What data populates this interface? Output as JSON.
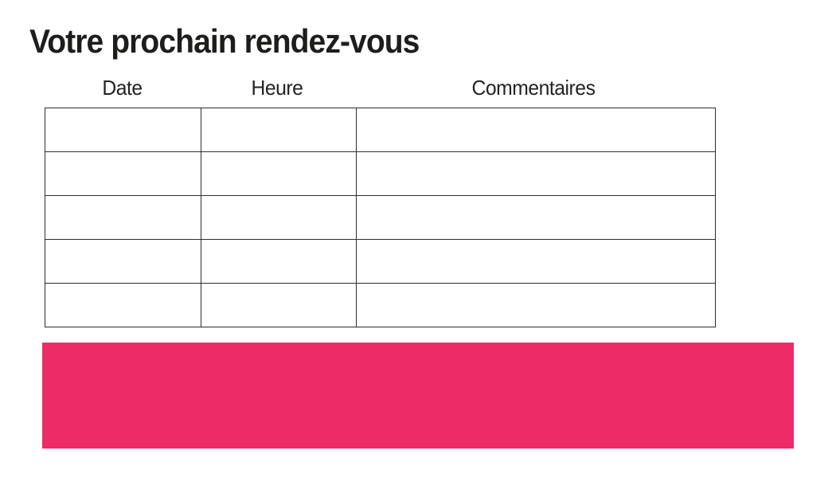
{
  "page": {
    "title": "Votre prochain rendez-vous",
    "background": "#ffffff"
  },
  "table": {
    "columns": [
      {
        "label": "Date"
      },
      {
        "label": "Heure"
      },
      {
        "label": "Commentaires"
      }
    ],
    "row_count": 5,
    "rows": [
      [
        "",
        "",
        ""
      ],
      [
        "",
        "",
        ""
      ],
      [
        "",
        "",
        ""
      ],
      [
        "",
        "",
        ""
      ],
      [
        "",
        "",
        ""
      ]
    ]
  },
  "banner": {
    "text": "",
    "color": "#ED2B67"
  },
  "colors": {
    "accent": "#ED2B67",
    "table_border": "#2e2e2e",
    "text": "#1d1d1b"
  }
}
